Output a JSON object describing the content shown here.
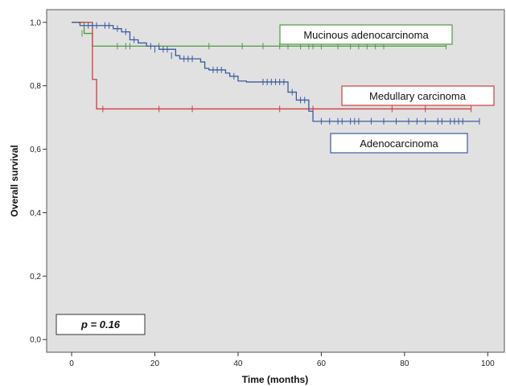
{
  "chart_data": {
    "type": "line",
    "xlabel": "Time (months)",
    "ylabel": "Overall survival",
    "xlim": [
      -6,
      104
    ],
    "ylim": [
      -0.04,
      1.04
    ],
    "x_ticks": [
      0,
      20,
      40,
      60,
      80,
      100
    ],
    "y_ticks": [
      0.0,
      0.2,
      0.4,
      0.6,
      0.8,
      1.0
    ],
    "x_tick_labels": [
      "0",
      "20",
      "40",
      "60",
      "80",
      "100"
    ],
    "y_tick_labels": [
      "0,0",
      "0,2",
      "0,4",
      "0,6",
      "0,8",
      "1,0"
    ],
    "grid": false,
    "annotation": "p = 0.16",
    "series": [
      {
        "name": "Mucinous adenocarcinoma",
        "color": "#4e9a43",
        "steps": [
          [
            0,
            1.0
          ],
          [
            3,
            0.965
          ],
          [
            5,
            0.925
          ],
          [
            90,
            0.925
          ]
        ],
        "censored": [
          [
            2.5,
            0.965
          ],
          [
            11,
            0.925
          ],
          [
            13,
            0.925
          ],
          [
            14,
            0.925
          ],
          [
            21,
            0.925
          ],
          [
            33,
            0.925
          ],
          [
            41,
            0.925
          ],
          [
            46,
            0.925
          ],
          [
            50,
            0.925
          ],
          [
            52,
            0.925
          ],
          [
            55,
            0.925
          ],
          [
            57,
            0.925
          ],
          [
            58,
            0.925
          ],
          [
            60,
            0.925
          ],
          [
            64,
            0.925
          ],
          [
            67,
            0.925
          ],
          [
            69,
            0.925
          ],
          [
            71,
            0.925
          ],
          [
            73,
            0.925
          ],
          [
            75,
            0.925
          ],
          [
            90,
            0.925
          ]
        ]
      },
      {
        "name": "Medullary carcinoma",
        "color": "#cc3f3f",
        "steps": [
          [
            0,
            1.0
          ],
          [
            5,
            0.82
          ],
          [
            6,
            0.727
          ],
          [
            96,
            0.727
          ]
        ],
        "censored": [
          [
            7.5,
            0.727
          ],
          [
            21,
            0.727
          ],
          [
            29,
            0.727
          ],
          [
            50,
            0.727
          ],
          [
            58,
            0.727
          ],
          [
            77,
            0.727
          ],
          [
            85,
            0.727
          ],
          [
            96,
            0.727
          ]
        ]
      },
      {
        "name": "Adenocarcinoma",
        "color": "#3a5ba0",
        "steps": [
          [
            0,
            1.0
          ],
          [
            2,
            0.99
          ],
          [
            10,
            0.98
          ],
          [
            12,
            0.97
          ],
          [
            14,
            0.945
          ],
          [
            16,
            0.935
          ],
          [
            18,
            0.925
          ],
          [
            21,
            0.915
          ],
          [
            25,
            0.895
          ],
          [
            26,
            0.885
          ],
          [
            31,
            0.875
          ],
          [
            32,
            0.855
          ],
          [
            33,
            0.85
          ],
          [
            37,
            0.84
          ],
          [
            38,
            0.83
          ],
          [
            40,
            0.815
          ],
          [
            42,
            0.812
          ],
          [
            52,
            0.78
          ],
          [
            54,
            0.755
          ],
          [
            57,
            0.72
          ],
          [
            58,
            0.688
          ],
          [
            98,
            0.688
          ]
        ],
        "censored": [
          [
            4,
            0.99
          ],
          [
            5,
            0.99
          ],
          [
            6,
            0.99
          ],
          [
            8,
            0.99
          ],
          [
            9,
            0.99
          ],
          [
            11,
            0.98
          ],
          [
            13,
            0.97
          ],
          [
            15,
            0.945
          ],
          [
            19,
            0.925
          ],
          [
            20,
            0.915
          ],
          [
            22,
            0.915
          ],
          [
            23,
            0.915
          ],
          [
            24,
            0.895
          ],
          [
            27,
            0.885
          ],
          [
            28,
            0.885
          ],
          [
            29,
            0.885
          ],
          [
            34,
            0.85
          ],
          [
            35,
            0.85
          ],
          [
            36,
            0.85
          ],
          [
            39,
            0.83
          ],
          [
            46,
            0.812
          ],
          [
            47,
            0.812
          ],
          [
            48,
            0.812
          ],
          [
            49,
            0.812
          ],
          [
            50,
            0.812
          ],
          [
            51,
            0.812
          ],
          [
            53,
            0.78
          ],
          [
            55,
            0.755
          ],
          [
            56,
            0.755
          ],
          [
            60,
            0.688
          ],
          [
            62,
            0.688
          ],
          [
            64,
            0.688
          ],
          [
            65,
            0.688
          ],
          [
            67,
            0.688
          ],
          [
            68,
            0.688
          ],
          [
            69,
            0.688
          ],
          [
            72,
            0.688
          ],
          [
            75,
            0.688
          ],
          [
            78,
            0.688
          ],
          [
            81,
            0.688
          ],
          [
            83,
            0.688
          ],
          [
            85,
            0.688
          ],
          [
            88,
            0.688
          ],
          [
            89,
            0.688
          ],
          [
            91,
            0.688
          ],
          [
            92,
            0.688
          ],
          [
            93,
            0.688
          ],
          [
            94,
            0.688
          ],
          [
            98,
            0.688
          ]
        ]
      }
    ]
  }
}
